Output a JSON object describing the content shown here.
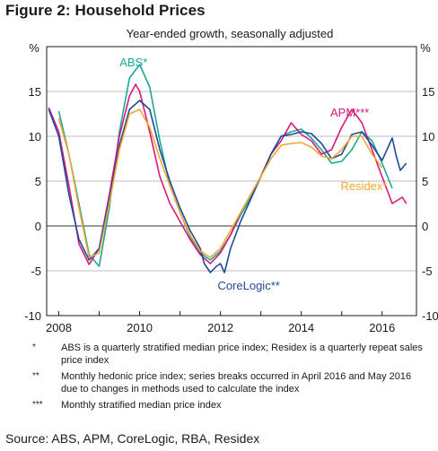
{
  "figure_title": "Figure 2: Household Prices",
  "source": "Source: ABS, APM, CoreLogic, RBA, Residex",
  "notes": [
    {
      "mark": "*",
      "text": "ABS is a quarterly stratified median price index; Residex is a quarterly repeat sales price index"
    },
    {
      "mark": "**",
      "text": "Monthly hedonic price index; series breaks occurred in April 2016 and May 2016 due to changes in methods used to calculate the index"
    },
    {
      "mark": "***",
      "text": "Monthly stratified median price index"
    }
  ],
  "chart_data": {
    "type": "line",
    "subtitle": "Year-ended growth, seasonally adjusted",
    "ylabel_left": "%",
    "ylabel_right": "%",
    "xlim": [
      2007.7,
      2016.85
    ],
    "ylim": [
      -10,
      20
    ],
    "yticks": [
      -10,
      -5,
      0,
      5,
      10,
      15
    ],
    "xtick_labels": [
      "2008",
      "2010",
      "2012",
      "2014",
      "2016"
    ],
    "xtick_positions": [
      2008,
      2010,
      2012,
      2014,
      2016
    ],
    "year_ticks": [
      2008,
      2009,
      2010,
      2011,
      2012,
      2013,
      2014,
      2015,
      2016
    ],
    "grid": "horizontal",
    "series": [
      {
        "name": "ABS*",
        "color": "#1aa79a",
        "label_year": 2009.85,
        "label_value": 17.8,
        "points": [
          [
            2008.0,
            12.8
          ],
          [
            2008.25,
            8
          ],
          [
            2008.5,
            2.5
          ],
          [
            2008.75,
            -3.2
          ],
          [
            2009.0,
            -4.5
          ],
          [
            2009.25,
            2
          ],
          [
            2009.5,
            10.5
          ],
          [
            2009.75,
            16.5
          ],
          [
            2010.0,
            18
          ],
          [
            2010.25,
            15.5
          ],
          [
            2010.5,
            9.5
          ],
          [
            2010.75,
            4.5
          ],
          [
            2011.0,
            1.5
          ],
          [
            2011.25,
            -1.2
          ],
          [
            2011.5,
            -3
          ],
          [
            2011.75,
            -3.8
          ],
          [
            2012.0,
            -2.8
          ],
          [
            2012.25,
            -1
          ],
          [
            2012.5,
            1.2
          ],
          [
            2012.75,
            3.2
          ],
          [
            2013.0,
            5.5
          ],
          [
            2013.25,
            8
          ],
          [
            2013.5,
            10
          ],
          [
            2013.75,
            10.5
          ],
          [
            2014.0,
            10.8
          ],
          [
            2014.25,
            9.8
          ],
          [
            2014.5,
            8.5
          ],
          [
            2014.75,
            7
          ],
          [
            2015.0,
            7.2
          ],
          [
            2015.25,
            8.5
          ],
          [
            2015.5,
            10.5
          ],
          [
            2015.75,
            9.5
          ],
          [
            2016.0,
            7
          ],
          [
            2016.25,
            4.2
          ]
        ]
      },
      {
        "name": "APM***",
        "color": "#d6187c",
        "label_year": 2015.2,
        "label_value": 12.2,
        "points": [
          [
            2007.75,
            13.2
          ],
          [
            2008.0,
            10.5
          ],
          [
            2008.25,
            4.5
          ],
          [
            2008.5,
            -2
          ],
          [
            2008.75,
            -4.3
          ],
          [
            2009.0,
            -2.5
          ],
          [
            2009.25,
            3.5
          ],
          [
            2009.5,
            10
          ],
          [
            2009.75,
            14.5
          ],
          [
            2009.9,
            15.8
          ],
          [
            2010.0,
            15
          ],
          [
            2010.25,
            10.5
          ],
          [
            2010.5,
            5.5
          ],
          [
            2010.75,
            2.5
          ],
          [
            2011.0,
            0.5
          ],
          [
            2011.25,
            -1.5
          ],
          [
            2011.5,
            -3.2
          ],
          [
            2011.75,
            -4.2
          ],
          [
            2012.0,
            -3
          ],
          [
            2012.25,
            -1
          ],
          [
            2012.5,
            1.5
          ],
          [
            2012.75,
            3.5
          ],
          [
            2013.0,
            5.5
          ],
          [
            2013.25,
            8
          ],
          [
            2013.5,
            9.5
          ],
          [
            2013.75,
            11.5
          ],
          [
            2014.0,
            10.2
          ],
          [
            2014.25,
            9.5
          ],
          [
            2014.5,
            8
          ],
          [
            2014.75,
            8.5
          ],
          [
            2015.0,
            11
          ],
          [
            2015.25,
            13
          ],
          [
            2015.5,
            11.5
          ],
          [
            2015.75,
            8.5
          ],
          [
            2016.0,
            5.5
          ],
          [
            2016.25,
            2.5
          ],
          [
            2016.5,
            3.2
          ],
          [
            2016.6,
            2.5
          ]
        ]
      },
      {
        "name": "CoreLogic**",
        "color": "#1f4b99",
        "label_year": 2012.7,
        "label_value": -7.1,
        "points": [
          [
            2007.75,
            13
          ],
          [
            2008.0,
            10
          ],
          [
            2008.25,
            3.5
          ],
          [
            2008.5,
            -1.5
          ],
          [
            2008.75,
            -3.8
          ],
          [
            2009.0,
            -2.5
          ],
          [
            2009.25,
            3
          ],
          [
            2009.5,
            9
          ],
          [
            2009.75,
            13
          ],
          [
            2010.0,
            14
          ],
          [
            2010.25,
            13
          ],
          [
            2010.5,
            8.5
          ],
          [
            2010.75,
            5
          ],
          [
            2011.0,
            2
          ],
          [
            2011.25,
            -0.5
          ],
          [
            2011.5,
            -2.5
          ],
          [
            2011.6,
            -4.2
          ],
          [
            2011.75,
            -5.2
          ],
          [
            2011.9,
            -4.5
          ],
          [
            2012.0,
            -4.2
          ],
          [
            2012.1,
            -5.2
          ],
          [
            2012.25,
            -2.5
          ],
          [
            2012.5,
            0.5
          ],
          [
            2012.75,
            3
          ],
          [
            2013.0,
            5.5
          ],
          [
            2013.25,
            8
          ],
          [
            2013.5,
            10
          ],
          [
            2013.75,
            10.2
          ],
          [
            2014.0,
            10.5
          ],
          [
            2014.25,
            10.3
          ],
          [
            2014.5,
            9.2
          ],
          [
            2014.75,
            7.5
          ],
          [
            2015.0,
            8
          ],
          [
            2015.25,
            10.2
          ],
          [
            2015.5,
            10.5
          ],
          [
            2015.75,
            9
          ],
          [
            2016.0,
            7.3
          ],
          [
            2016.25,
            9.8
          ],
          [
            2016.35,
            7.8
          ],
          [
            2016.45,
            6.2
          ],
          [
            2016.6,
            7
          ]
        ]
      },
      {
        "name": "Residex*",
        "color": "#f0a830",
        "label_year": 2015.55,
        "label_value": 4.0,
        "points": [
          [
            2008.0,
            12
          ],
          [
            2008.25,
            8
          ],
          [
            2008.5,
            2
          ],
          [
            2008.75,
            -3.5
          ],
          [
            2009.0,
            -3
          ],
          [
            2009.25,
            2.5
          ],
          [
            2009.5,
            8.5
          ],
          [
            2009.75,
            12.5
          ],
          [
            2010.0,
            13
          ],
          [
            2010.25,
            11
          ],
          [
            2010.5,
            7.5
          ],
          [
            2010.75,
            4.5
          ],
          [
            2011.0,
            1.5
          ],
          [
            2011.25,
            -1
          ],
          [
            2011.5,
            -2.8
          ],
          [
            2011.75,
            -3.5
          ],
          [
            2012.0,
            -2.5
          ],
          [
            2012.25,
            -0.5
          ],
          [
            2012.5,
            1.5
          ],
          [
            2012.75,
            3.5
          ],
          [
            2013.0,
            5.5
          ],
          [
            2013.25,
            7.5
          ],
          [
            2013.5,
            9
          ],
          [
            2013.75,
            9.2
          ],
          [
            2014.0,
            9.3
          ],
          [
            2014.25,
            8.8
          ],
          [
            2014.5,
            7.8
          ],
          [
            2014.75,
            7.5
          ],
          [
            2015.0,
            8.5
          ],
          [
            2015.25,
            10
          ],
          [
            2015.5,
            10
          ],
          [
            2015.75,
            8
          ],
          [
            2016.0,
            6.5
          ]
        ]
      }
    ]
  }
}
